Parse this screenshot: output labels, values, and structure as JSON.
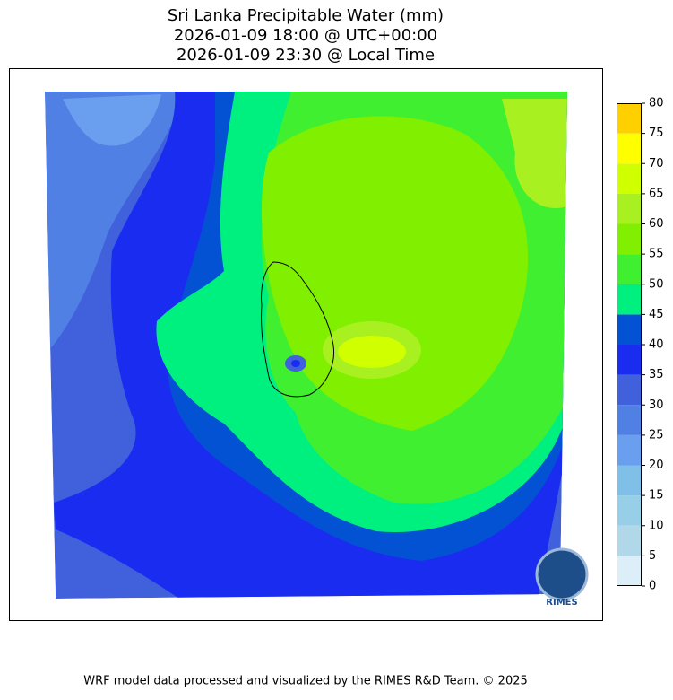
{
  "title_lines": [
    "Sri Lanka Precipitable Water (mm)",
    "2026-01-09 18:00 @ UTC+00:00",
    "2026-01-09 23:30 @ Local Time"
  ],
  "colorbar": {
    "ticks": [
      0,
      5,
      10,
      15,
      20,
      25,
      30,
      35,
      40,
      45,
      50,
      55,
      60,
      65,
      70,
      75,
      80
    ],
    "colors": [
      "#dceef8",
      "#b0d8e8",
      "#98cfe8",
      "#80bfe8",
      "#6a9eee",
      "#5080e4",
      "#4060dc",
      "#1a2cf0",
      "#0352d4",
      "#00f080",
      "#40f030",
      "#80f000",
      "#a8f020",
      "#d0ff00",
      "#ffff00",
      "#ffd000"
    ]
  },
  "logo_text": "RIMES",
  "footer": "WRF model data processed and visualized by the RIMES R&D Team. © 2025"
}
